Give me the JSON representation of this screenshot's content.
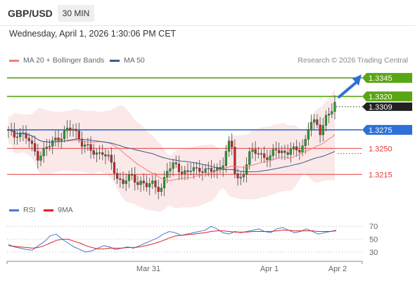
{
  "header": {
    "pair": "GBP/USD",
    "timeframe": "30 MIN",
    "datetime": "Wednesday, April 1, 2026 1:30:06 PM CET"
  },
  "legend_price": [
    {
      "label": "MA 20 + Bollinger Bands",
      "color": "#f08080"
    },
    {
      "label": "MA 50",
      "color": "#3a5a8c"
    }
  ],
  "legend_rsi": [
    {
      "label": "RSI",
      "color": "#4a78d0"
    },
    {
      "label": "9MA",
      "color": "#dd2222"
    }
  ],
  "credit": "Research © 2026 Trading Central",
  "chart_data": [
    {
      "type": "candlestick",
      "title": "",
      "x_ticks": [
        "Mar 31",
        "Apr 1",
        "Apr 2"
      ],
      "ylim": [
        1.3185,
        1.336
      ],
      "current_price": "1.3309",
      "levels": [
        {
          "value": 1.3345,
          "label": "1.3345",
          "color": "#5aa514",
          "style": "resistance",
          "badge": true
        },
        {
          "value": 1.332,
          "label": "1.3320",
          "color": "#5aa514",
          "style": "resistance",
          "badge": true
        },
        {
          "value": 1.3275,
          "label": "1.3275",
          "color": "#2e6fd8",
          "style": "pivot",
          "badge": true
        },
        {
          "value": 1.325,
          "label": "1.3250",
          "color": "#e23a3a",
          "style": "support",
          "badge": false
        },
        {
          "value": 1.3215,
          "label": "1.3215",
          "color": "#e23a3a",
          "style": "support",
          "badge": false
        }
      ],
      "close_path": [
        1.3272,
        1.3265,
        1.3274,
        1.3268,
        1.3262,
        1.3248,
        1.324,
        1.3246,
        1.3252,
        1.3258,
        1.3265,
        1.327,
        1.3274,
        1.3276,
        1.3268,
        1.3258,
        1.325,
        1.3244,
        1.3242,
        1.3248,
        1.3238,
        1.3225,
        1.321,
        1.3205,
        1.3212,
        1.3208,
        1.3204,
        1.3206,
        1.3202,
        1.32,
        1.3196,
        1.3198,
        1.3222,
        1.3224,
        1.3226,
        1.322,
        1.3218,
        1.3222,
        1.3218,
        1.3224,
        1.3222,
        1.322,
        1.3218,
        1.3224,
        1.3248,
        1.3262,
        1.3204,
        1.321,
        1.323,
        1.3246,
        1.3244,
        1.324,
        1.3242,
        1.3238,
        1.3248,
        1.3244,
        1.3246,
        1.325,
        1.3244,
        1.3248,
        1.326,
        1.329,
        1.3282,
        1.327,
        1.3292,
        1.33,
        1.3309
      ]
    },
    {
      "type": "line",
      "title": "RSI",
      "y_ticks": [
        70,
        50,
        30
      ],
      "ylim": [
        20,
        80
      ],
      "series": [
        {
          "name": "RSI",
          "values": [
            42,
            38,
            36,
            34,
            33,
            40,
            46,
            55,
            58,
            50,
            44,
            38,
            34,
            30,
            32,
            36,
            40,
            38,
            34,
            36,
            38,
            36,
            40,
            44,
            48,
            52,
            58,
            62,
            60,
            56,
            58,
            60,
            62,
            64,
            70,
            66,
            60,
            58,
            62,
            60,
            62,
            64,
            66,
            62,
            60,
            66,
            68,
            64,
            60,
            62,
            66,
            62,
            58,
            60,
            62,
            64
          ]
        },
        {
          "name": "9MA",
          "values": [
            40,
            39,
            38,
            37,
            36,
            37,
            40,
            44,
            48,
            50,
            50,
            47,
            44,
            40,
            37,
            35,
            35,
            36,
            36,
            36,
            37,
            37,
            38,
            40,
            42,
            45,
            48,
            52,
            55,
            56,
            57,
            58,
            59,
            60,
            62,
            63,
            63,
            62,
            61,
            61,
            61,
            62,
            62,
            62,
            62,
            63,
            64,
            64,
            63,
            63,
            63,
            63,
            62,
            62,
            62,
            63
          ]
        }
      ]
    }
  ]
}
